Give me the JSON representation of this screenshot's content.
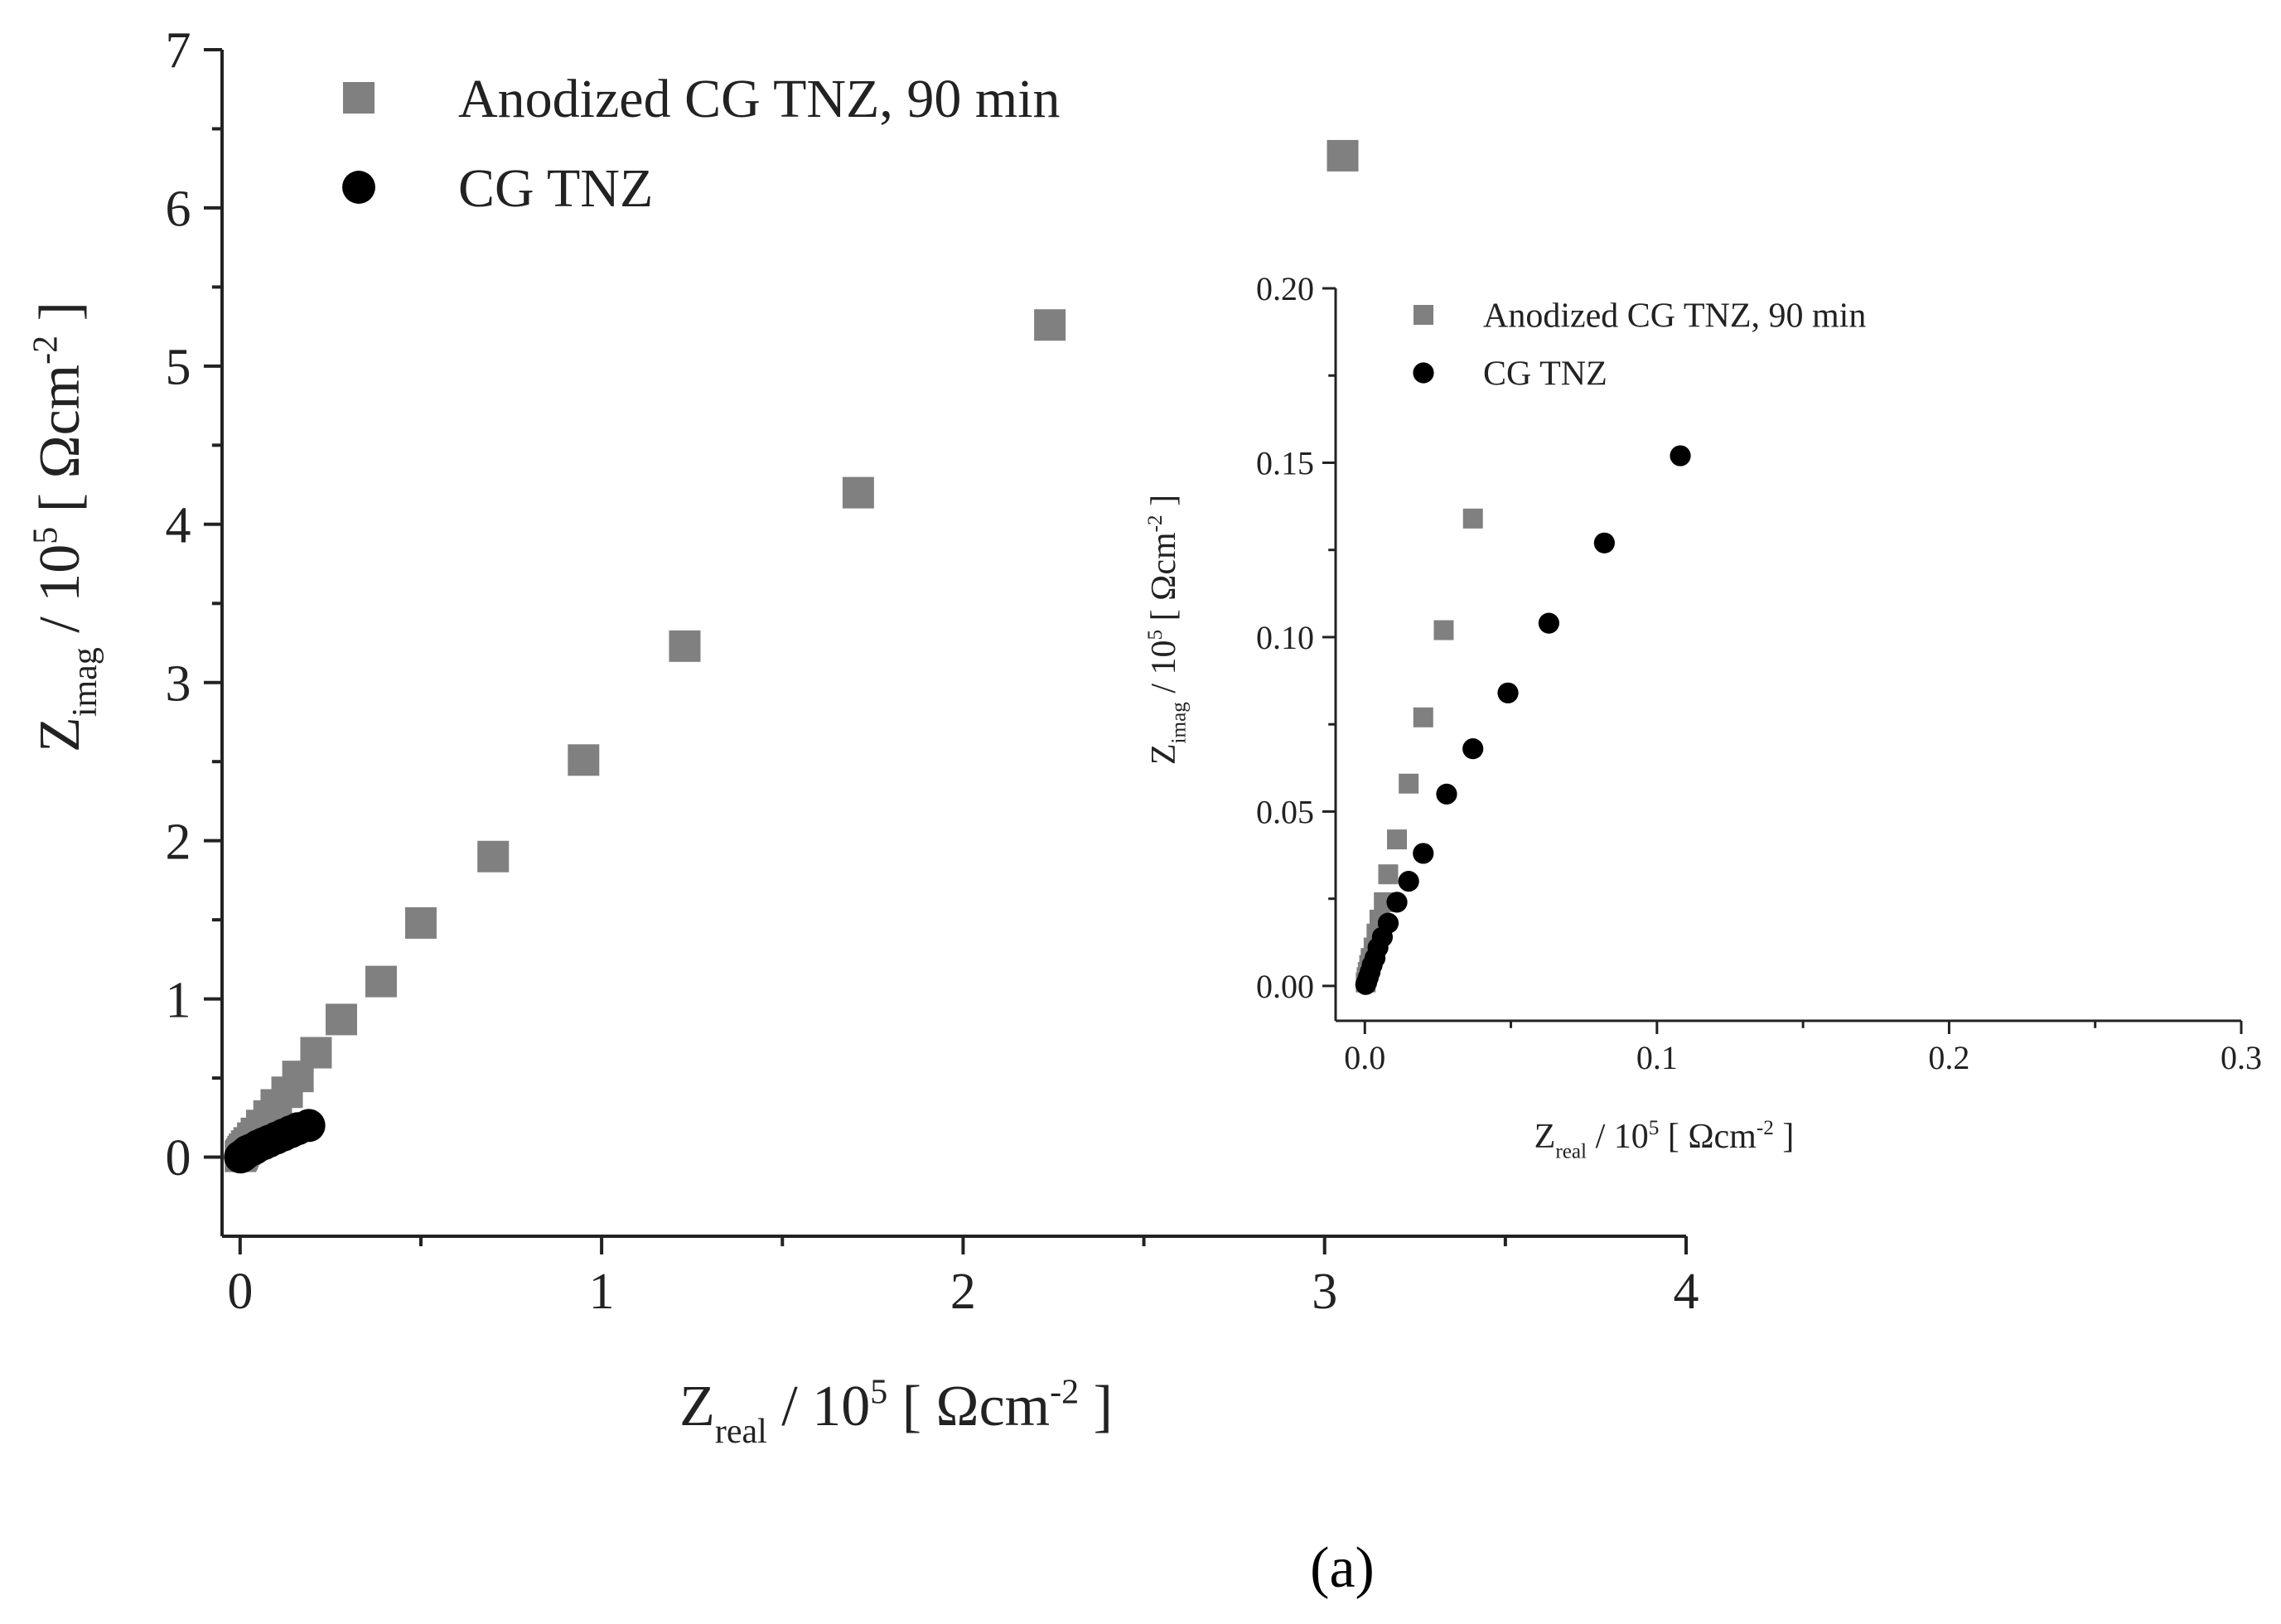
{
  "caption": "(a)",
  "chart_data": [
    {
      "id": "main",
      "type": "scatter",
      "xlim": [
        -0.05,
        4
      ],
      "ylim": [
        -0.5,
        7
      ],
      "xticks": [
        0,
        1,
        2,
        3,
        4
      ],
      "yticks": [
        0,
        1,
        2,
        3,
        4,
        5,
        6,
        7
      ],
      "xtick_labels": [
        "0",
        "1",
        "2",
        "3",
        "4"
      ],
      "ytick_labels": [
        "0",
        "1",
        "2",
        "3",
        "4",
        "5",
        "6",
        "7"
      ],
      "xlabel": {
        "main": "Z",
        "sub": "real",
        "rest": " / 10",
        "sup": "5",
        "unit": " [ Ωcm",
        "unit_sup": "-2",
        "close": " ]"
      },
      "ylabel": {
        "main": "Z",
        "sub": "imag",
        "rest": " / 10",
        "sup": "5",
        "unit": " [ Ωcm",
        "unit_sup": "-2",
        "close": " ]"
      },
      "legend": {
        "position": "top-left"
      },
      "series": [
        {
          "name": "Anodized CG TNZ, 90 min",
          "marker": "square",
          "color": "#808080",
          "x": [
            3.05,
            2.24,
            1.71,
            1.23,
            0.95,
            0.7,
            0.5,
            0.39,
            0.28,
            0.21,
            0.16,
            0.13,
            0.1,
            0.08,
            0.06,
            0.045,
            0.035,
            0.025,
            0.018,
            0.012,
            0.008,
            0.005,
            0.003,
            0.001
          ],
          "y": [
            6.33,
            5.26,
            4.2,
            3.23,
            2.51,
            1.9,
            1.48,
            1.11,
            0.87,
            0.66,
            0.51,
            0.41,
            0.33,
            0.26,
            0.2,
            0.15,
            0.12,
            0.09,
            0.07,
            0.05,
            0.035,
            0.02,
            0.012,
            0.005
          ]
        },
        {
          "name": "CG TNZ",
          "marker": "circle",
          "color": "#000000",
          "x": [
            0.19,
            0.16,
            0.14,
            0.12,
            0.1,
            0.08,
            0.065,
            0.05,
            0.04,
            0.03,
            0.02,
            0.015,
            0.01,
            0.006,
            0.003,
            0.001
          ],
          "y": [
            0.2,
            0.18,
            0.16,
            0.14,
            0.12,
            0.1,
            0.085,
            0.07,
            0.055,
            0.045,
            0.035,
            0.025,
            0.015,
            0.008,
            0.004,
            0.001
          ]
        }
      ]
    },
    {
      "id": "inset",
      "type": "scatter",
      "xlim": [
        -0.01,
        0.3
      ],
      "ylim": [
        -0.01,
        0.2
      ],
      "xticks": [
        0.0,
        0.1,
        0.2,
        0.3
      ],
      "yticks": [
        0.0,
        0.05,
        0.1,
        0.15,
        0.2
      ],
      "xtick_labels": [
        "0.0",
        "0.1",
        "0.2",
        "0.3"
      ],
      "ytick_labels": [
        "0.00",
        "0.05",
        "0.10",
        "0.15",
        "0.20"
      ],
      "xlabel": {
        "main": "Z",
        "sub": "real",
        "rest": " / 10",
        "sup": "5",
        "unit": " [ Ωcm",
        "unit_sup": "-2",
        "close": " ]"
      },
      "ylabel": {
        "main": "Z",
        "sub": "imag",
        "rest": " / 10",
        "sup": "5",
        "unit": " [ Ωcm",
        "unit_sup": "-2",
        "close": " ]"
      },
      "legend": {
        "position": "top-left"
      },
      "series": [
        {
          "name": "Anodized CG TNZ, 90 min",
          "marker": "square",
          "color": "#808080",
          "x": [
            0.037,
            0.027,
            0.02,
            0.015,
            0.011,
            0.008,
            0.0065,
            0.005,
            0.004,
            0.003,
            0.002,
            0.0015,
            0.001,
            0.0006,
            0.0003
          ],
          "y": [
            0.134,
            0.102,
            0.077,
            0.058,
            0.042,
            0.032,
            0.024,
            0.019,
            0.015,
            0.011,
            0.008,
            0.006,
            0.004,
            0.0025,
            0.001
          ]
        },
        {
          "name": "CG TNZ",
          "marker": "circle",
          "color": "#000000",
          "x": [
            0.108,
            0.082,
            0.063,
            0.049,
            0.037,
            0.028,
            0.02,
            0.015,
            0.011,
            0.008,
            0.006,
            0.0045,
            0.0035,
            0.0025,
            0.0018,
            0.0012,
            0.0007,
            0.0003
          ],
          "y": [
            0.152,
            0.127,
            0.104,
            0.084,
            0.068,
            0.055,
            0.038,
            0.03,
            0.024,
            0.018,
            0.014,
            0.011,
            0.008,
            0.006,
            0.004,
            0.0025,
            0.0012,
            0.0004
          ]
        }
      ]
    }
  ]
}
